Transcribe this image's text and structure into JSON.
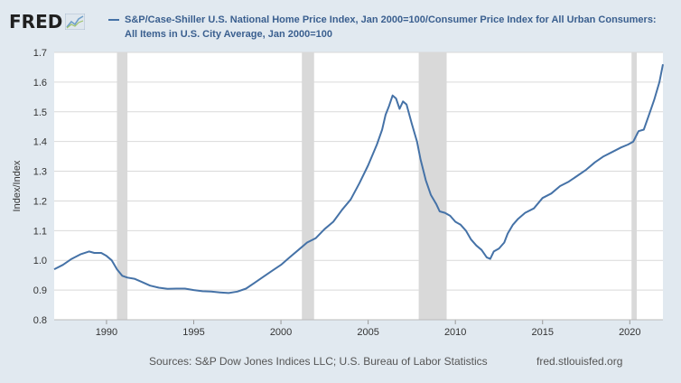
{
  "header": {
    "logo_text": "FRED",
    "logo_icon": "line-chart-icon",
    "series_title": "S&P/Case-Shiller U.S. National Home Price Index, Jan 2000=100/Consumer Price Index for All Urban Consumers: All Items in U.S. City Average, Jan 2000=100"
  },
  "footer": {
    "sources": "Sources: S&P Dow Jones Indices LLC; U.S. Bureau of Labor Statistics",
    "site": "fred.stlouisfed.org"
  },
  "colors": {
    "line": "#4572a7",
    "recession": "#d9d9d9",
    "background": "#e1e9f0",
    "plot_bg": "#ffffff",
    "grid": "#d9d9d9"
  },
  "chart_data": {
    "type": "line",
    "ylabel": "Index/Index",
    "xlabel": "",
    "xlim": [
      1987.0,
      2021.9
    ],
    "ylim": [
      0.8,
      1.7
    ],
    "yticks": [
      0.8,
      0.9,
      1.0,
      1.1,
      1.2,
      1.3,
      1.4,
      1.5,
      1.6,
      1.7
    ],
    "ytick_labels": [
      "0.8",
      "0.9",
      "1.0",
      "1.1",
      "1.2",
      "1.3",
      "1.4",
      "1.5",
      "1.6",
      "1.7"
    ],
    "xticks": [
      1990,
      1995,
      2000,
      2005,
      2010,
      2015,
      2020
    ],
    "xtick_labels": [
      "1990",
      "1995",
      "2000",
      "2005",
      "2010",
      "2015",
      "2020"
    ],
    "grid": "horizontal",
    "recessions": [
      [
        1990.6,
        1991.2
      ],
      [
        2001.2,
        2001.9
      ],
      [
        2007.9,
        2009.5
      ],
      [
        2020.1,
        2020.4
      ]
    ],
    "series": [
      {
        "name": "S&P/Case-Shiller U.S. National Home Price Index, Jan 2000=100/Consumer Price Index for All Urban Consumers: All Items in U.S. City Average, Jan 2000=100",
        "x": [
          1987.0,
          1987.5,
          1988.0,
          1988.5,
          1989.0,
          1989.3,
          1989.7,
          1990.0,
          1990.3,
          1990.6,
          1990.9,
          1991.2,
          1991.6,
          1992.0,
          1992.5,
          1993.0,
          1993.5,
          1994.0,
          1994.5,
          1995.0,
          1995.5,
          1996.0,
          1996.5,
          1997.0,
          1997.5,
          1998.0,
          1998.5,
          1999.0,
          1999.5,
          2000.0,
          2000.5,
          2001.0,
          2001.5,
          2002.0,
          2002.5,
          2003.0,
          2003.5,
          2004.0,
          2004.5,
          2005.0,
          2005.5,
          2005.8,
          2006.0,
          2006.2,
          2006.4,
          2006.6,
          2006.8,
          2007.0,
          2007.2,
          2007.5,
          2007.8,
          2008.0,
          2008.3,
          2008.6,
          2008.9,
          2009.1,
          2009.4,
          2009.7,
          2010.0,
          2010.3,
          2010.6,
          2010.9,
          2011.2,
          2011.5,
          2011.8,
          2012.0,
          2012.2,
          2012.5,
          2012.8,
          2013.0,
          2013.3,
          2013.6,
          2014.0,
          2014.5,
          2015.0,
          2015.5,
          2016.0,
          2016.5,
          2017.0,
          2017.5,
          2018.0,
          2018.5,
          2019.0,
          2019.5,
          2019.9,
          2020.2,
          2020.5,
          2020.8,
          2021.1,
          2021.4,
          2021.7,
          2021.9
        ],
        "values": [
          0.97,
          0.985,
          1.005,
          1.02,
          1.03,
          1.025,
          1.025,
          1.015,
          1.0,
          0.97,
          0.948,
          0.942,
          0.938,
          0.928,
          0.915,
          0.908,
          0.904,
          0.905,
          0.905,
          0.9,
          0.896,
          0.895,
          0.892,
          0.89,
          0.895,
          0.905,
          0.925,
          0.945,
          0.965,
          0.985,
          1.01,
          1.035,
          1.06,
          1.075,
          1.105,
          1.13,
          1.17,
          1.205,
          1.26,
          1.32,
          1.39,
          1.44,
          1.49,
          1.52,
          1.555,
          1.545,
          1.51,
          1.535,
          1.525,
          1.46,
          1.4,
          1.34,
          1.27,
          1.22,
          1.19,
          1.165,
          1.16,
          1.15,
          1.13,
          1.12,
          1.1,
          1.07,
          1.05,
          1.035,
          1.01,
          1.005,
          1.03,
          1.04,
          1.06,
          1.09,
          1.12,
          1.14,
          1.16,
          1.175,
          1.21,
          1.225,
          1.25,
          1.265,
          1.285,
          1.305,
          1.33,
          1.35,
          1.365,
          1.38,
          1.39,
          1.4,
          1.435,
          1.44,
          1.49,
          1.54,
          1.6,
          1.66
        ]
      }
    ]
  }
}
